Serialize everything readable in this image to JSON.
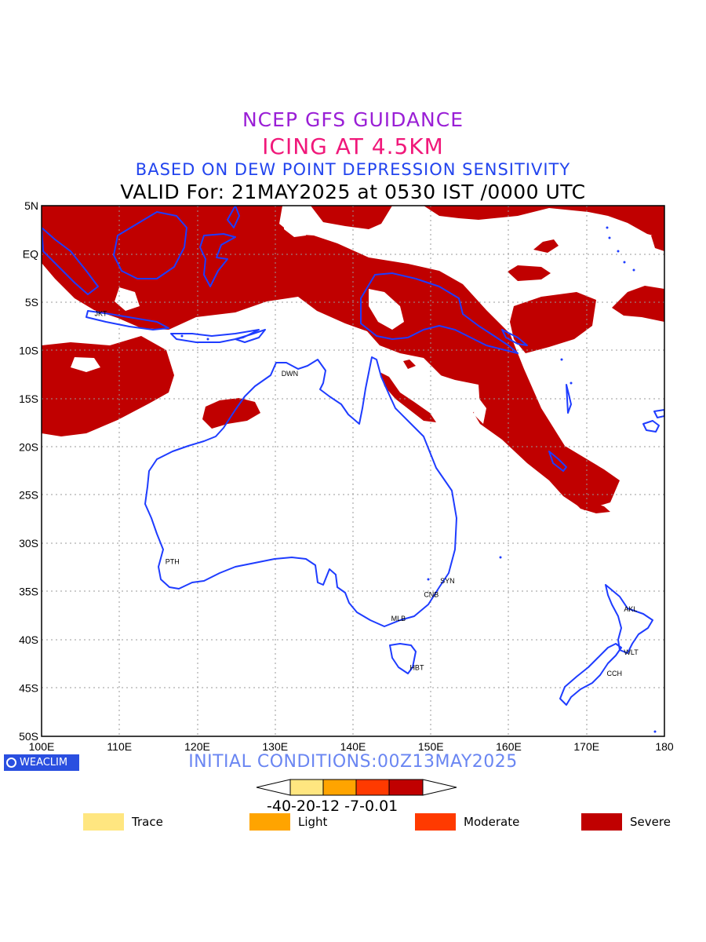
{
  "title_line1": "NCEP GFS GUIDANCE",
  "title_line2": "ICING AT 4.5KM",
  "title_line3": "BASED ON DEW POINT DEPRESSION SENSITIVITY",
  "title_line4": "VALID For: 21MAY2025 at 0530 IST /0000 UTC",
  "initial_conditions": "INITIAL CONDITIONS:00Z13MAY2025",
  "logo_text": "WEACLIM",
  "lat_labels": [
    "5N",
    "EQ",
    "5S",
    "10S",
    "15S",
    "20S",
    "25S",
    "30S",
    "35S",
    "40S",
    "45S",
    "50S"
  ],
  "lon_labels": [
    "100E",
    "110E",
    "120E",
    "130E",
    "140E",
    "150E",
    "160E",
    "170E",
    "180"
  ],
  "cities": [
    {
      "code": "JKT",
      "lon": 106.8,
      "lat": -6.2
    },
    {
      "code": "DWN",
      "lon": 130.8,
      "lat": -12.4
    },
    {
      "code": "PTH",
      "lon": 115.9,
      "lat": -31.9
    },
    {
      "code": "SYN",
      "lon": 151.2,
      "lat": -33.9
    },
    {
      "code": "CNB",
      "lon": 149.1,
      "lat": -35.3
    },
    {
      "code": "MLB",
      "lon": 144.9,
      "lat": -37.8
    },
    {
      "code": "HBT",
      "lon": 147.3,
      "lat": -42.9
    },
    {
      "code": "AKL",
      "lon": 174.8,
      "lat": -36.8
    },
    {
      "code": "WLT",
      "lon": 174.8,
      "lat": -41.3
    },
    {
      "code": "CCH",
      "lon": 172.6,
      "lat": -43.5
    }
  ],
  "colorbar": {
    "levels_text": "-40-20-12 -7-0.01",
    "colors": [
      "#ffe680",
      "#ffa400",
      "#ff3a00",
      "#c00000"
    ]
  },
  "legend": [
    {
      "label": "Trace",
      "color": "#ffe680"
    },
    {
      "label": "Light",
      "color": "#ffa400"
    },
    {
      "label": "Moderate",
      "color": "#ff3a00"
    },
    {
      "label": "Severe",
      "color": "#c00000"
    }
  ],
  "colors": {
    "coastline": "#1e3cff",
    "severe": "#c00000"
  }
}
